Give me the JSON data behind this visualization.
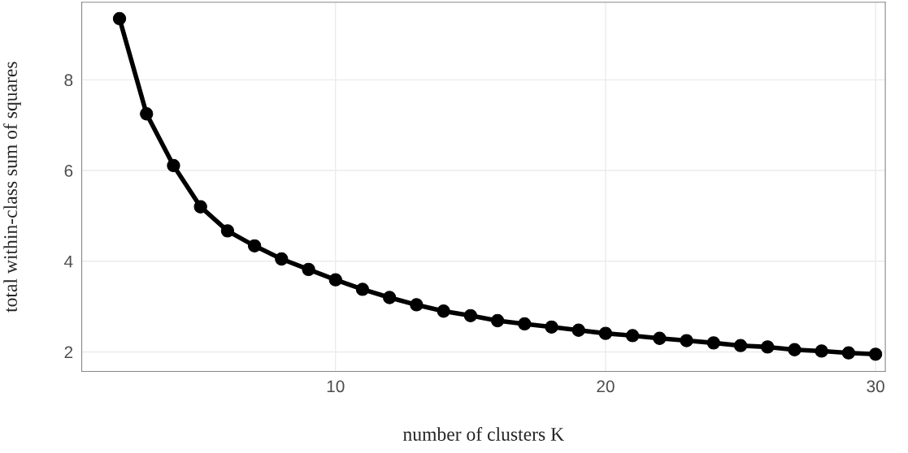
{
  "chart_data": {
    "type": "line",
    "xlabel": "number of clusters K",
    "ylabel": "total within-class sum of squares",
    "x": [
      2,
      3,
      4,
      5,
      6,
      7,
      8,
      9,
      10,
      11,
      12,
      13,
      14,
      15,
      16,
      17,
      18,
      19,
      20,
      21,
      22,
      23,
      24,
      25,
      26,
      27,
      28,
      29,
      30
    ],
    "series": [
      {
        "color": "#000000",
        "values": [
          9.35,
          7.25,
          6.11,
          5.2,
          4.67,
          4.34,
          4.05,
          3.82,
          3.59,
          3.38,
          3.2,
          3.04,
          2.9,
          2.8,
          2.69,
          2.62,
          2.55,
          2.48,
          2.41,
          2.36,
          2.3,
          2.25,
          2.2,
          2.14,
          2.11,
          2.05,
          2.02,
          1.98,
          1.95
        ]
      }
    ],
    "xlim": [
      0.6,
      30.36
    ],
    "ylim": [
      1.57,
      9.71
    ],
    "xticks": [
      10,
      20,
      30
    ],
    "yticks": [
      2,
      4,
      6,
      8
    ],
    "grid": true,
    "marker": "circle",
    "line_style": "solid"
  }
}
